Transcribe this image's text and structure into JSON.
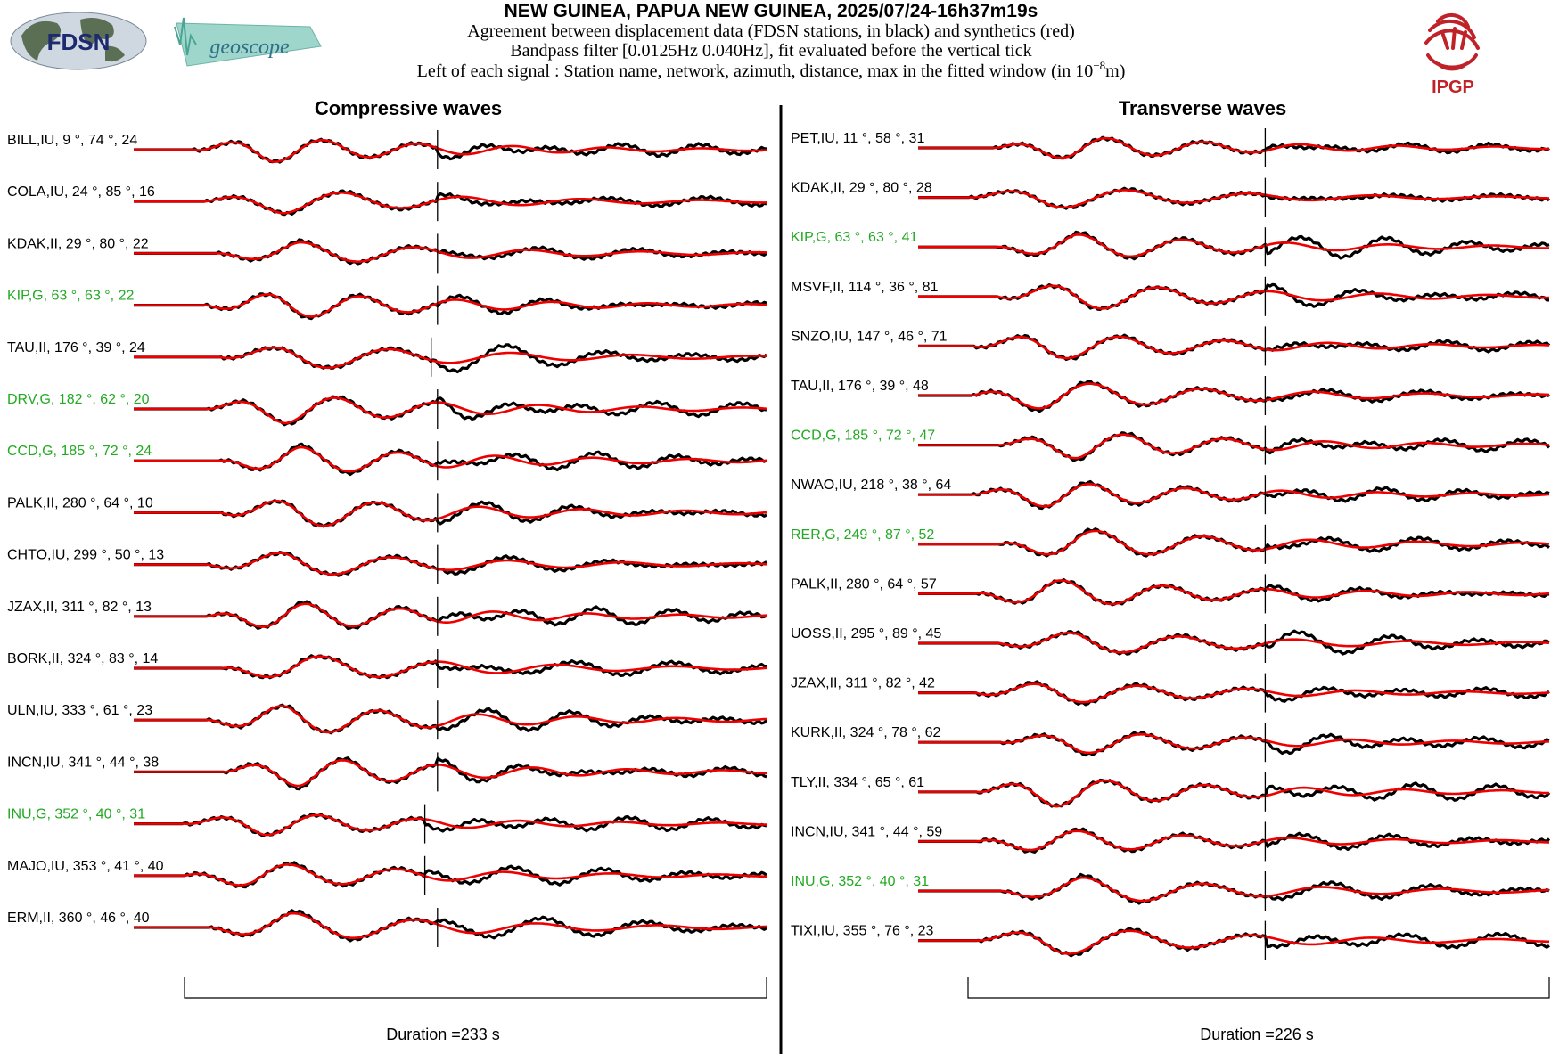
{
  "header": {
    "title": "NEW GUINEA, PAPUA NEW GUINEA, 2025/07/24-16h37m19s",
    "line1": "Agreement between displacement data (FDSN stations, in black) and synthetics (red)",
    "line2": "Bandpass filter [0.0125Hz 0.040Hz], fit evaluated before the vertical tick",
    "line3_prefix": "Left of each signal : Station name, network, azimuth, distance, max in the fitted window (in 10",
    "line3_exp": "−8",
    "line3_suffix": "m)"
  },
  "logos": {
    "fdsn": "FDSN",
    "geoscope": "geoscope",
    "ipgp": "IPGP"
  },
  "colors": {
    "data": "#000000",
    "synthetic": "#ee0000",
    "highlight_label": "#22aa22",
    "normal_label": "#000000"
  },
  "chart_data": [
    {
      "type": "line",
      "title": "Compressive waves",
      "duration_label": "Duration =233 s",
      "duration_s": 233,
      "series_legend": {
        "data": "black",
        "synthetics": "red"
      },
      "stations": [
        {
          "label": "BILL,IU, 9 °, 74 °, 24",
          "highlight": false,
          "tick_frac": 0.48,
          "seed": 3
        },
        {
          "label": "COLA,IU, 24 °, 85 °, 16",
          "highlight": false,
          "tick_frac": 0.48,
          "seed": 7
        },
        {
          "label": "KDAK,II, 29 °, 80 °, 22",
          "highlight": false,
          "tick_frac": 0.48,
          "seed": 11
        },
        {
          "label": "KIP,G, 63 °, 63 °, 22",
          "highlight": true,
          "tick_frac": 0.48,
          "seed": 13
        },
        {
          "label": "TAU,II, 176 °, 39 °, 24",
          "highlight": false,
          "tick_frac": 0.47,
          "seed": 17
        },
        {
          "label": "DRV,G, 182 °, 62 °, 20",
          "highlight": true,
          "tick_frac": 0.48,
          "seed": 19
        },
        {
          "label": "CCD,G, 185 °, 72 °, 24",
          "highlight": true,
          "tick_frac": 0.48,
          "seed": 23
        },
        {
          "label": "PALK,II, 280 °, 64 °, 10",
          "highlight": false,
          "tick_frac": 0.48,
          "seed": 29
        },
        {
          "label": "CHTO,IU, 299 °, 50 °, 13",
          "highlight": false,
          "tick_frac": 0.48,
          "seed": 31
        },
        {
          "label": "JZAX,II, 311 °, 82 °, 13",
          "highlight": false,
          "tick_frac": 0.48,
          "seed": 37
        },
        {
          "label": "BORK,II, 324 °, 83 °, 14",
          "highlight": false,
          "tick_frac": 0.48,
          "seed": 41
        },
        {
          "label": "ULN,IU, 333 °, 61 °, 23",
          "highlight": false,
          "tick_frac": 0.48,
          "seed": 43
        },
        {
          "label": "INCN,IU, 341 °, 44 °, 38",
          "highlight": false,
          "tick_frac": 0.48,
          "seed": 47
        },
        {
          "label": "INU,G, 352 °, 40 °, 31",
          "highlight": true,
          "tick_frac": 0.46,
          "seed": 53
        },
        {
          "label": "MAJO,IU, 353 °, 41 °, 40",
          "highlight": false,
          "tick_frac": 0.46,
          "seed": 59
        },
        {
          "label": "ERM,II, 360 °, 46 °, 40",
          "highlight": false,
          "tick_frac": 0.48,
          "seed": 61
        }
      ]
    },
    {
      "type": "line",
      "title": "Transverse waves",
      "duration_label": "Duration =226 s",
      "duration_s": 226,
      "series_legend": {
        "data": "black",
        "synthetics": "red"
      },
      "stations": [
        {
          "label": "PET,IU, 11 °, 58 °, 31",
          "highlight": false,
          "tick_frac": 0.55,
          "seed": 67
        },
        {
          "label": "KDAK,II, 29 °, 80 °, 28",
          "highlight": false,
          "tick_frac": 0.55,
          "seed": 71
        },
        {
          "label": "KIP,G, 63 °, 63 °, 41",
          "highlight": true,
          "tick_frac": 0.55,
          "seed": 73
        },
        {
          "label": "MSVF,II, 114 °, 36 °, 81",
          "highlight": false,
          "tick_frac": 0.55,
          "seed": 79
        },
        {
          "label": "SNZO,IU, 147 °, 46 °, 71",
          "highlight": false,
          "tick_frac": 0.55,
          "seed": 83
        },
        {
          "label": "TAU,II, 176 °, 39 °, 48",
          "highlight": false,
          "tick_frac": 0.55,
          "seed": 89
        },
        {
          "label": "CCD,G, 185 °, 72 °, 47",
          "highlight": true,
          "tick_frac": 0.55,
          "seed": 97
        },
        {
          "label": "NWAO,IU, 218 °, 38 °, 64",
          "highlight": false,
          "tick_frac": 0.55,
          "seed": 101
        },
        {
          "label": "RER,G, 249 °, 87 °, 52",
          "highlight": true,
          "tick_frac": 0.55,
          "seed": 103
        },
        {
          "label": "PALK,II, 280 °, 64 °, 57",
          "highlight": false,
          "tick_frac": 0.55,
          "seed": 107
        },
        {
          "label": "UOSS,II, 295 °, 89 °, 45",
          "highlight": false,
          "tick_frac": 0.55,
          "seed": 109
        },
        {
          "label": "JZAX,II, 311 °, 82 °, 42",
          "highlight": false,
          "tick_frac": 0.55,
          "seed": 113
        },
        {
          "label": "KURK,II, 324 °, 78 °, 62",
          "highlight": false,
          "tick_frac": 0.55,
          "seed": 127
        },
        {
          "label": "TLY,II, 334 °, 65 °, 61",
          "highlight": false,
          "tick_frac": 0.55,
          "seed": 131
        },
        {
          "label": "INCN,IU, 341 °, 44 °, 59",
          "highlight": false,
          "tick_frac": 0.55,
          "seed": 137
        },
        {
          "label": "INU,G, 352 °, 40 °, 31",
          "highlight": true,
          "tick_frac": 0.55,
          "seed": 139
        },
        {
          "label": "TIXI,IU, 355 °, 76 °, 23",
          "highlight": false,
          "tick_frac": 0.55,
          "seed": 149
        }
      ]
    }
  ]
}
